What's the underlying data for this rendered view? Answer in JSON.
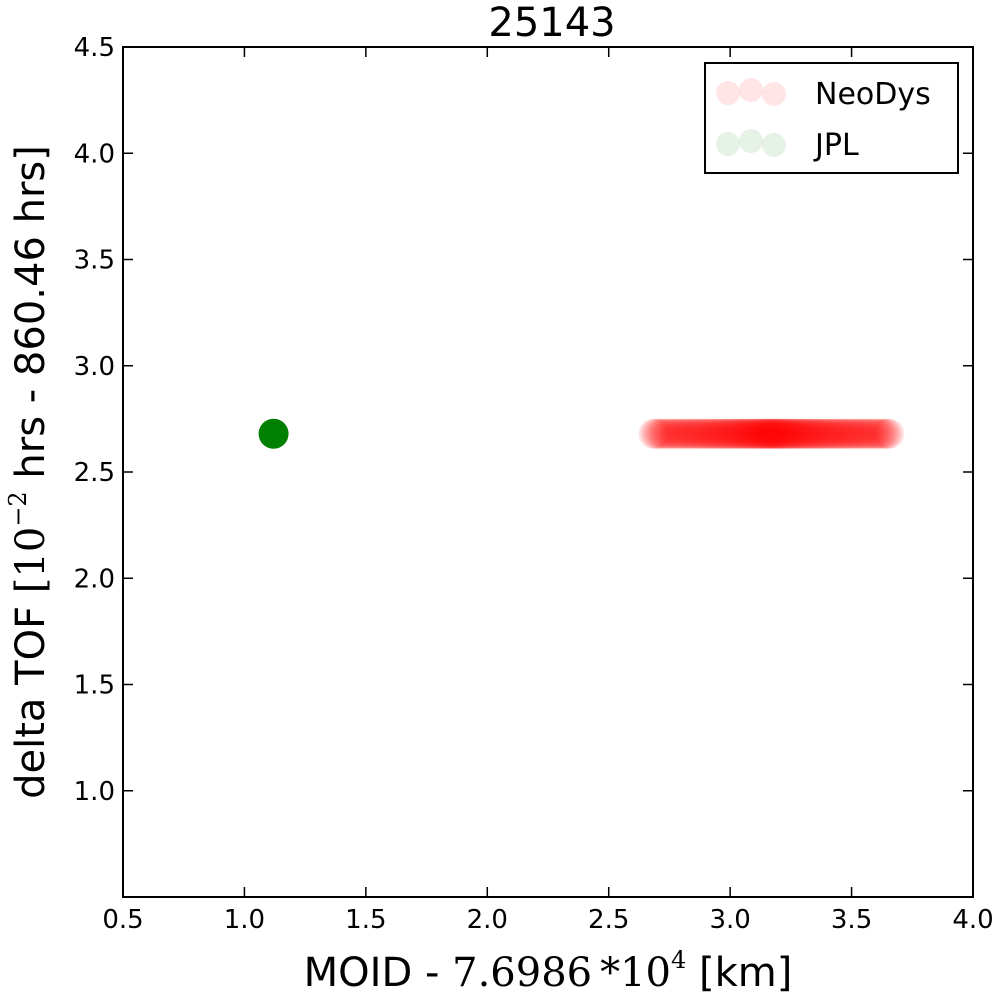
{
  "chart_data": {
    "type": "scatter",
    "title": "25143",
    "xlabel": "MOID - 7.6986*10^4 [km]",
    "xlabel_parts": {
      "prefix": "MOID - ",
      "math": "7.6986 *10",
      "exp": "4",
      "suffix": " [km]"
    },
    "ylabel": "delta TOF [10^-2 hrs - 860.46 hrs]",
    "ylabel_parts": {
      "prefix": "delta TOF ",
      "math": "[10",
      "exp": "−2",
      "suffix": " hrs - 860.46 hrs]"
    },
    "xlim": [
      0.5,
      4.0
    ],
    "ylim": [
      0.5,
      4.5
    ],
    "xticks": [
      "0.5",
      "1.0",
      "1.5",
      "2.0",
      "2.5",
      "3.0",
      "3.5",
      "4.0"
    ],
    "yticks": [
      "1.0",
      "1.5",
      "2.0",
      "2.5",
      "3.0",
      "3.5",
      "4.0",
      "4.5"
    ],
    "legend_position": "upper right",
    "series": [
      {
        "name": "NeoDys",
        "color": "#ff0000",
        "alpha": 0.1,
        "x_range": [
          2.68,
          3.66
        ],
        "y": 2.68,
        "description": "many overlapping translucent points between x=2.68 and x=3.66 at y=2.68, densest between 2.85 and 3.5"
      },
      {
        "name": "JPL",
        "color": "#008000",
        "points": [
          {
            "x": 1.12,
            "y": 2.68
          }
        ]
      }
    ]
  }
}
